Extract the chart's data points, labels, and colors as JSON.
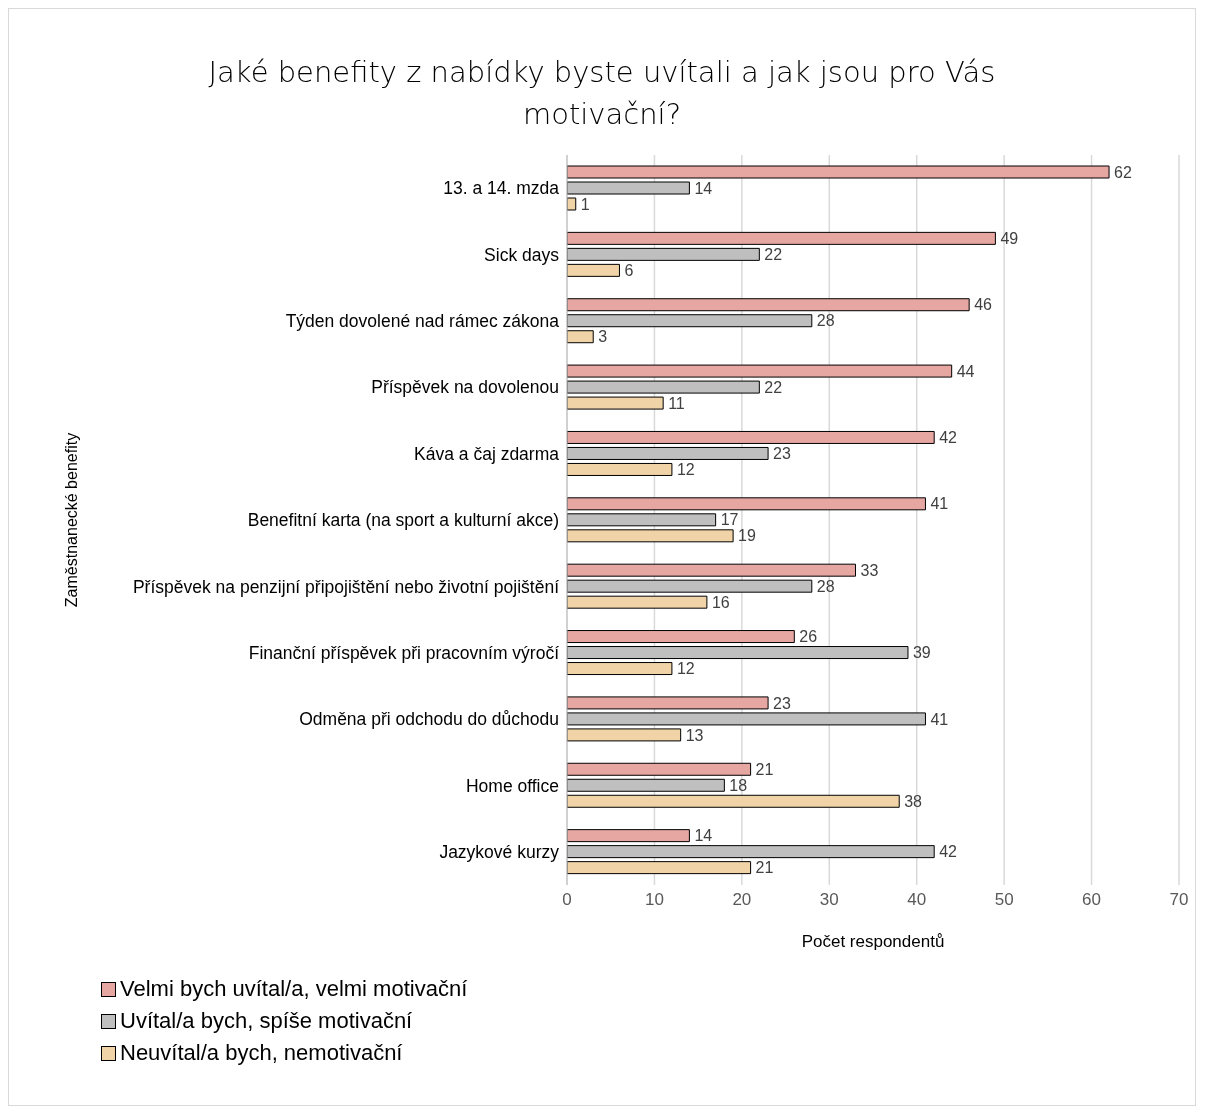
{
  "chart_data": {
    "type": "bar",
    "orientation": "horizontal",
    "title": "Jaké benefity z nabídky byste uvítali a jak jsou pro Vás motivační?",
    "xlabel": "Počet respondentů",
    "ylabel": "Zaměstnanecké benefity",
    "categories": [
      "13. a 14. mzda",
      "Sick days",
      "Týden dovolené nad rámec zákona",
      "Příspěvek na dovolenou",
      "Káva a čaj zdarma",
      "Benefitní karta (na sport a kulturní akce)",
      "Příspěvek na penzijní připojištění nebo životní pojištění",
      "Finanční příspěvek při pracovním výročí",
      "Odměna při odchodu do důchodu",
      "Home office",
      "Jazykové kurzy"
    ],
    "series": [
      {
        "name": "Velmi bych uvítal/a, velmi motivační",
        "color": "#e6a6a1",
        "values": [
          62,
          49,
          46,
          44,
          42,
          41,
          33,
          26,
          23,
          21,
          14
        ]
      },
      {
        "name": "Uvítal/a bych, spíše motivační",
        "color": "#bfbfbf",
        "values": [
          14,
          22,
          28,
          22,
          23,
          17,
          28,
          39,
          41,
          18,
          42
        ]
      },
      {
        "name": "Neuvítal/a bych, nemotivační",
        "color": "#f0d3a7",
        "values": [
          1,
          6,
          3,
          11,
          12,
          19,
          16,
          12,
          13,
          38,
          21
        ]
      }
    ],
    "xlim": [
      0,
      70
    ],
    "xticks": [
      0,
      10,
      20,
      30,
      40,
      50,
      60,
      70
    ],
    "grid": "x",
    "legend": "bottom left",
    "data_labels": true
  }
}
